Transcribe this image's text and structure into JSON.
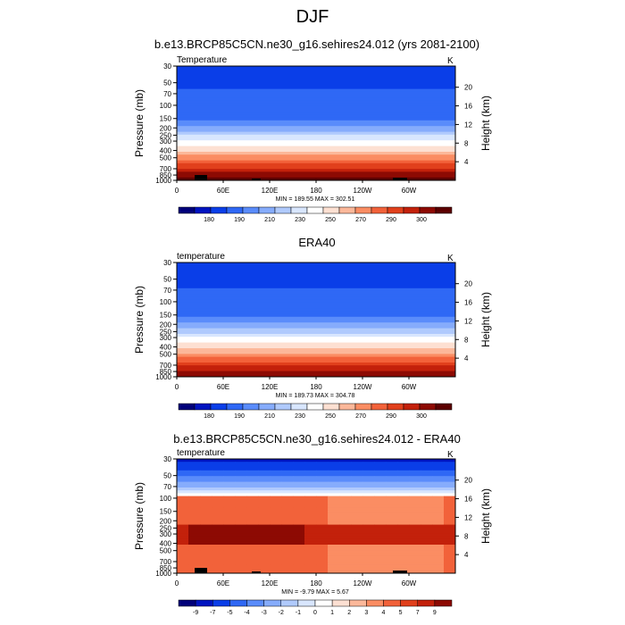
{
  "title": "DJF",
  "chart_data": [
    {
      "type": "heatmap",
      "title": "b.e13.BRCP85C5CN.ne30_g16.sehires24.012 (yrs 2081-2100)",
      "left_label": "Temperature",
      "units": "K",
      "ylabel": "Pressure (mb)",
      "ylabel_right": "Height (km)",
      "x_ticks": [
        "0",
        "60E",
        "120E",
        "180",
        "120W",
        "60W"
      ],
      "y_ticks": [
        "30",
        "50",
        "70",
        "100",
        "150",
        "200",
        "250",
        "300",
        "400",
        "500",
        "700",
        "850",
        "1000"
      ],
      "height_ticks": [
        "20",
        "16",
        "12",
        "8",
        "4"
      ],
      "min": 189.55,
      "max": 302.51,
      "minmax_text": "MIN = 189.55  MAX = 302.51",
      "colorbar_labels": [
        "180",
        "190",
        "210",
        "230",
        "250",
        "270",
        "290",
        "300"
      ],
      "colors": [
        "#00007a",
        "#0014c0",
        "#0a3ee8",
        "#2f68f5",
        "#5a8cfb",
        "#86acfc",
        "#b0cafd",
        "#d8e6fe",
        "#ffffff",
        "#fde0d2",
        "#fcb89a",
        "#fb8d63",
        "#f2623a",
        "#e1401c",
        "#c3210b",
        "#8d0a03",
        "#5c0000"
      ]
    },
    {
      "type": "heatmap",
      "title": "ERA40",
      "left_label": "temperature",
      "units": "K",
      "ylabel": "Pressure (mb)",
      "ylabel_right": "Height (km)",
      "x_ticks": [
        "0",
        "60E",
        "120E",
        "180",
        "120W",
        "60W"
      ],
      "y_ticks": [
        "30",
        "50",
        "70",
        "100",
        "150",
        "200",
        "250",
        "300",
        "400",
        "500",
        "700",
        "850",
        "1000"
      ],
      "height_ticks": [
        "20",
        "16",
        "12",
        "8",
        "4"
      ],
      "min": 189.73,
      "max": 304.78,
      "minmax_text": "MIN = 189.73  MAX = 304.78",
      "colorbar_labels": [
        "180",
        "190",
        "210",
        "230",
        "250",
        "270",
        "290",
        "300"
      ],
      "colors": [
        "#00007a",
        "#0014c0",
        "#0a3ee8",
        "#2f68f5",
        "#5a8cfb",
        "#86acfc",
        "#b0cafd",
        "#d8e6fe",
        "#ffffff",
        "#fde0d2",
        "#fcb89a",
        "#fb8d63",
        "#f2623a",
        "#e1401c",
        "#c3210b",
        "#8d0a03",
        "#5c0000"
      ]
    },
    {
      "type": "heatmap",
      "title": "b.e13.BRCP85C5CN.ne30_g16.sehires24.012 - ERA40",
      "left_label": "temperature",
      "units": "K",
      "ylabel": "Pressure (mb)",
      "ylabel_right": "Height (km)",
      "x_ticks": [
        "0",
        "60E",
        "120E",
        "180",
        "120W",
        "60W"
      ],
      "y_ticks": [
        "30",
        "50",
        "70",
        "100",
        "150",
        "200",
        "250",
        "300",
        "400",
        "500",
        "700",
        "850",
        "1000"
      ],
      "height_ticks": [
        "20",
        "16",
        "12",
        "8",
        "4"
      ],
      "min": -9.79,
      "max": 5.67,
      "minmax_text": "MIN =  -9.79  MAX =   5.67",
      "colorbar_labels": [
        "-9",
        "-7",
        "-5",
        "-4",
        "-3",
        "-2",
        "-1",
        "0",
        "1",
        "2",
        "3",
        "4",
        "5",
        "7",
        "9"
      ],
      "colors": [
        "#00007a",
        "#0014c0",
        "#0a3ee8",
        "#2f68f5",
        "#5a8cfb",
        "#86acfc",
        "#b0cafd",
        "#d8e6fe",
        "#ffffff",
        "#fde0d2",
        "#fcb89a",
        "#fb8d63",
        "#f2623a",
        "#e1401c",
        "#c3210b",
        "#8d0a03"
      ]
    }
  ]
}
